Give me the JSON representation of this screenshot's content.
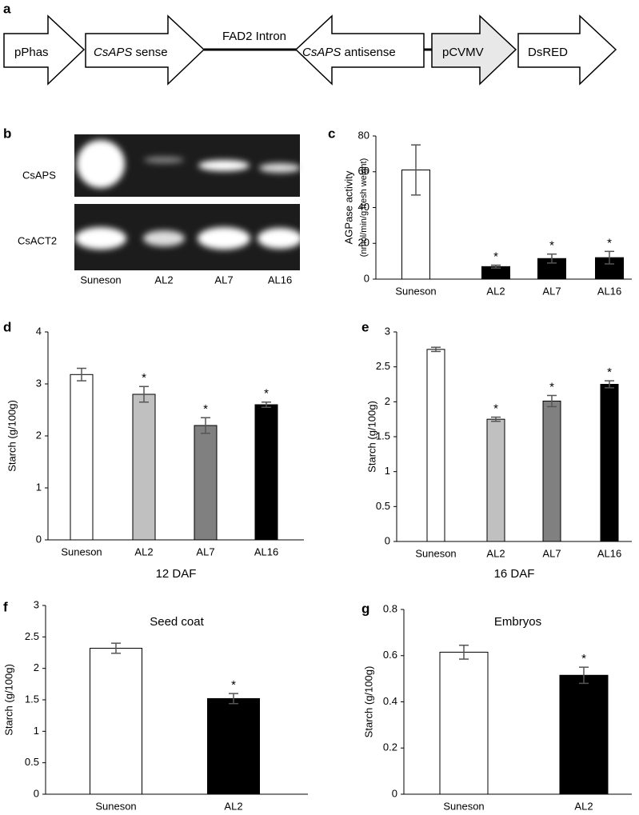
{
  "construct": {
    "panel": "a",
    "elements": [
      {
        "label": "pPhas"
      },
      {
        "gene": "CsAPS",
        "label": "sense"
      },
      {
        "label": "FAD2 Intron"
      },
      {
        "gene": "CsAPS",
        "label": "antisense"
      },
      {
        "label": "pCVMV"
      },
      {
        "label": "DsRED"
      }
    ]
  },
  "gel": {
    "panel": "b",
    "rows": [
      "CsAPS",
      "CsACT2"
    ],
    "lanes": [
      "Suneson",
      "AL2",
      "AL7",
      "AL16"
    ]
  },
  "chart_data": [
    {
      "type": "bar",
      "panel": "c",
      "ylabel": "AGPase activity",
      "ylabel_unit": "(nmol/min/g fresh weight)",
      "categories": [
        "Suneson",
        "AL2",
        "AL7",
        "AL16"
      ],
      "values": [
        61,
        7,
        11.5,
        12
      ],
      "errors": [
        14,
        0.8,
        2.5,
        3.5
      ],
      "colors": [
        "#ffffff",
        "#000000",
        "#000000",
        "#000000"
      ],
      "significance": [
        null,
        "*",
        "*",
        "*"
      ],
      "ylim": [
        0,
        80
      ],
      "yticks": [
        0,
        20,
        40,
        60,
        80
      ]
    },
    {
      "type": "bar",
      "panel": "d",
      "ylabel": "Starch (g/100g)",
      "xlabel": "12 DAF",
      "categories": [
        "Suneson",
        "AL2",
        "AL7",
        "AL16"
      ],
      "values": [
        3.18,
        2.8,
        2.2,
        2.6
      ],
      "errors": [
        0.12,
        0.15,
        0.15,
        0.05
      ],
      "colors": [
        "#ffffff",
        "#c0c0c0",
        "#808080",
        "#000000"
      ],
      "significance": [
        null,
        "*",
        "*",
        "*"
      ],
      "ylim": [
        0,
        4
      ],
      "yticks": [
        0,
        1,
        2,
        3,
        4
      ]
    },
    {
      "type": "bar",
      "panel": "e",
      "ylabel": "Starch (g/100g)",
      "xlabel": "16 DAF",
      "categories": [
        "Suneson",
        "AL2",
        "AL7",
        "AL16"
      ],
      "values": [
        2.75,
        1.75,
        2.01,
        2.25
      ],
      "errors": [
        0.03,
        0.03,
        0.08,
        0.05
      ],
      "colors": [
        "#ffffff",
        "#c0c0c0",
        "#808080",
        "#000000"
      ],
      "significance": [
        null,
        "*",
        "*",
        "*"
      ],
      "ylim": [
        0,
        3
      ],
      "yticks": [
        0,
        0.5,
        1,
        1.5,
        2,
        2.5,
        3
      ]
    },
    {
      "type": "bar",
      "panel": "f",
      "title": "Seed coat",
      "ylabel": "Starch (g/100g)",
      "categories": [
        "Suneson",
        "AL2"
      ],
      "values": [
        2.32,
        1.52
      ],
      "errors": [
        0.08,
        0.08
      ],
      "colors": [
        "#ffffff",
        "#000000"
      ],
      "significance": [
        null,
        "*"
      ],
      "ylim": [
        0,
        3
      ],
      "yticks": [
        0,
        0.5,
        1,
        1.5,
        2,
        2.5,
        3
      ]
    },
    {
      "type": "bar",
      "panel": "g",
      "title": "Embryos",
      "ylabel": "Starch (g/100g)",
      "categories": [
        "Suneson",
        "AL2"
      ],
      "values": [
        0.615,
        0.515
      ],
      "errors": [
        0.03,
        0.035
      ],
      "colors": [
        "#ffffff",
        "#000000"
      ],
      "significance": [
        null,
        "*"
      ],
      "ylim": [
        0,
        0.8
      ],
      "yticks": [
        0,
        0.2,
        0.4,
        0.6,
        0.8
      ]
    }
  ]
}
